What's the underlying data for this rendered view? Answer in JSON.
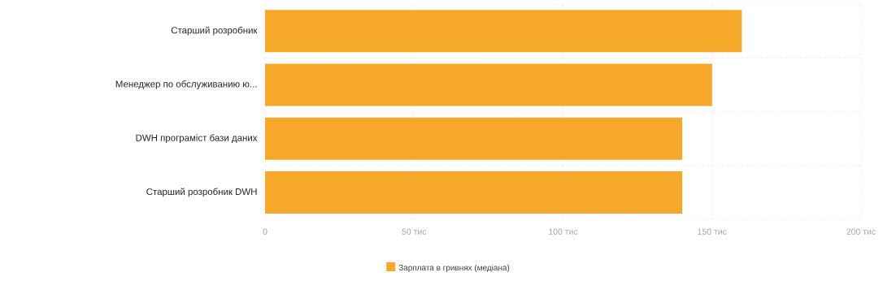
{
  "chart_data": {
    "type": "bar",
    "orientation": "horizontal",
    "categories": [
      "Старший розробник",
      "Менеджер по обслуживанию ю...",
      "DWH програміст бази даних",
      "Старший розробник DWH"
    ],
    "series": [
      {
        "name": "Зарплата в гривнях (медіана)",
        "color": "#f5a82a",
        "values": [
          160,
          150,
          140,
          140
        ]
      }
    ],
    "xlim": [
      0,
      200
    ],
    "xticks": [
      0,
      {
        "value": 50,
        "label": "50 тис"
      },
      {
        "value": 100,
        "label": "100 тис"
      },
      {
        "value": 150,
        "label": "150 тис"
      },
      {
        "value": 200,
        "label": "200 тис"
      }
    ],
    "grid": true,
    "legend": "bottom"
  }
}
